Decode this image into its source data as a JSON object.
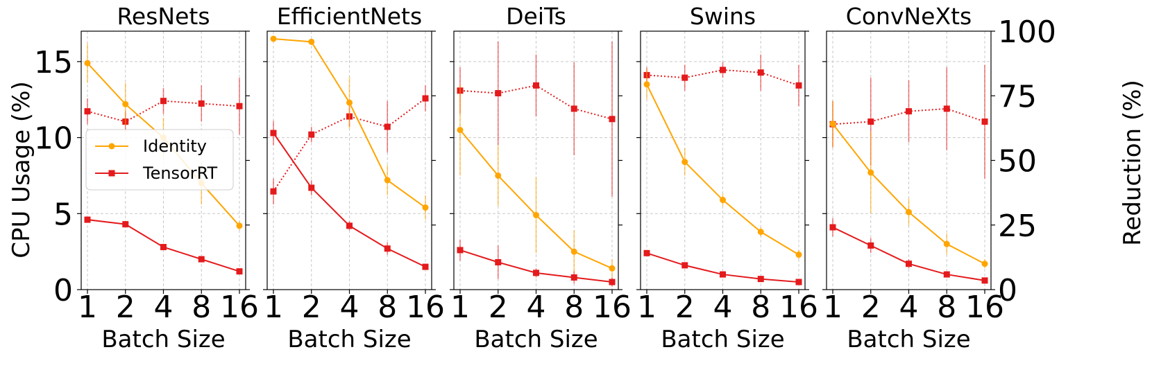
{
  "chart_data": {
    "type": "line",
    "x_categories": [
      "1",
      "2",
      "4",
      "8",
      "16"
    ],
    "xlabel": "Batch Size",
    "ylabel_left": "CPU Usage (%)",
    "ylabel_right": "Reduction (%)",
    "ylim_left": [
      0,
      17
    ],
    "ylim_right": [
      0,
      100
    ],
    "yticks_left": [
      "0",
      "5",
      "10",
      "15"
    ],
    "yticks_right": [
      "0",
      "25",
      "50",
      "75",
      "100"
    ],
    "grid": true,
    "legend": {
      "placement": "left-middle of first panel",
      "entries": [
        {
          "label": "Identity",
          "color": "#ffa500",
          "marker": "circle"
        },
        {
          "label": "TensorRT",
          "color": "#e41a1c",
          "marker": "square"
        }
      ]
    },
    "panels": [
      {
        "title": "ResNets",
        "identity": [
          14.9,
          12.2,
          10.0,
          7.0,
          4.2
        ],
        "identity_err": [
          1.3,
          1.4,
          1.3,
          1.4,
          0.3
        ],
        "tensorrt": [
          4.6,
          4.3,
          2.8,
          2.0,
          1.2
        ],
        "tensorrt_err": [
          0.2,
          0.2,
          0.2,
          0.2,
          0.2
        ],
        "reduction": [
          69,
          65,
          73,
          72,
          71
        ],
        "reduction_err": [
          5,
          4,
          5,
          7,
          11
        ]
      },
      {
        "title": "EfficientNets",
        "identity": [
          16.5,
          16.3,
          12.3,
          7.2,
          5.4
        ],
        "identity_err": [
          0.2,
          0.2,
          1.7,
          1.0,
          0.8
        ],
        "tensorrt": [
          10.3,
          6.7,
          4.2,
          2.7,
          1.5
        ],
        "tensorrt_err": [
          0.8,
          0.5,
          0.3,
          0.4,
          0.2
        ],
        "reduction": [
          38,
          60,
          67,
          63,
          74
        ],
        "reduction_err": [
          5,
          3,
          4,
          10,
          5
        ]
      },
      {
        "title": "DeiTs",
        "identity": [
          10.5,
          7.5,
          4.9,
          2.5,
          1.4
        ],
        "identity_err": [
          3.0,
          2.0,
          2.5,
          1.4,
          0.6
        ],
        "tensorrt": [
          2.6,
          1.8,
          1.1,
          0.8,
          0.5
        ],
        "tensorrt_err": [
          0.7,
          1.1,
          0.3,
          0.4,
          0.3
        ],
        "reduction": [
          77,
          76,
          79,
          70,
          66
        ],
        "reduction_err": [
          9,
          20,
          12,
          18,
          30
        ]
      },
      {
        "title": "Swins",
        "identity": [
          13.5,
          8.4,
          5.9,
          3.8,
          2.3
        ],
        "identity_err": [
          1.0,
          0.9,
          0.4,
          0.3,
          0.3
        ],
        "tensorrt": [
          2.4,
          1.6,
          1.0,
          0.7,
          0.5
        ],
        "tensorrt_err": [
          0.2,
          0.2,
          0.1,
          0.1,
          0.1
        ],
        "reduction": [
          83,
          82,
          85,
          84,
          79
        ],
        "reduction_err": [
          3,
          5,
          3,
          7,
          8
        ]
      },
      {
        "title": "ConvNeXts",
        "identity": [
          10.9,
          7.7,
          5.1,
          3.0,
          1.7
        ],
        "identity_err": [
          1.5,
          2.7,
          0.9,
          0.7,
          0.3
        ],
        "tensorrt": [
          4.1,
          2.9,
          1.7,
          1.0,
          0.6
        ],
        "tensorrt_err": [
          0.6,
          0.5,
          0.3,
          0.2,
          0.1
        ],
        "reduction": [
          64,
          65,
          69,
          70,
          65
        ],
        "reduction_err": [
          9,
          17,
          12,
          16,
          22
        ]
      }
    ]
  }
}
